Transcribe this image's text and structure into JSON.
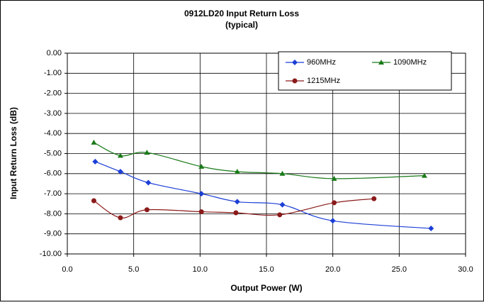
{
  "chart_data": {
    "type": "line",
    "title": [
      "0912LD20 Input Return Loss",
      "(typical)"
    ],
    "x_label": "Output Power (W)",
    "y_label": "Input Return Loss (dB)",
    "xlim": [
      0,
      30
    ],
    "xticks": [
      {
        "value": 0,
        "label": "0.0"
      },
      {
        "value": 5,
        "label": "5.0"
      },
      {
        "value": 10,
        "label": "10.0"
      },
      {
        "value": 15,
        "label": "15.0"
      },
      {
        "value": 20,
        "label": "20.0"
      },
      {
        "value": 25,
        "label": "25.0"
      },
      {
        "value": 30,
        "label": "30.0"
      }
    ],
    "ylim": [
      -10,
      0
    ],
    "yticks": [
      {
        "value": 0,
        "label": "0.00"
      },
      {
        "value": -1,
        "label": "-1.00"
      },
      {
        "value": -2,
        "label": "-2.00"
      },
      {
        "value": -3,
        "label": "-3.00"
      },
      {
        "value": -4,
        "label": "-4.00"
      },
      {
        "value": -5,
        "label": "-5.00"
      },
      {
        "value": -6,
        "label": "-6.00"
      },
      {
        "value": -7,
        "label": "-7.00"
      },
      {
        "value": -8,
        "label": "-8.00"
      },
      {
        "value": -9,
        "label": "-9.00"
      },
      {
        "value": -10,
        "label": "-10.00"
      }
    ],
    "grid": true,
    "legend": "upper right",
    "series": [
      {
        "name": "960MHz",
        "color": "#1c3fd6",
        "marker": "diamond",
        "x": [
          2.1,
          4.0,
          6.1,
          10.1,
          12.8,
          16.2,
          20.0,
          27.4
        ],
        "values": [
          -5.4,
          -5.9,
          -6.45,
          -7.0,
          -7.4,
          -7.55,
          -8.35,
          -8.73
        ]
      },
      {
        "name": "1090MHz",
        "color": "#1a7a1a",
        "marker": "triangle",
        "x": [
          2.0,
          4.0,
          6.0,
          10.1,
          12.8,
          16.2,
          20.1,
          26.9
        ],
        "values": [
          -4.45,
          -5.1,
          -4.95,
          -5.65,
          -5.9,
          -6.0,
          -6.25,
          -6.1
        ]
      },
      {
        "name": "1215MHz",
        "color": "#8b1a1a",
        "marker": "circle",
        "x": [
          2.0,
          4.0,
          6.0,
          10.1,
          12.7,
          16.0,
          20.1,
          23.1
        ],
        "values": [
          -7.35,
          -8.2,
          -7.8,
          -7.9,
          -7.95,
          -8.05,
          -7.45,
          -7.25
        ]
      }
    ]
  }
}
